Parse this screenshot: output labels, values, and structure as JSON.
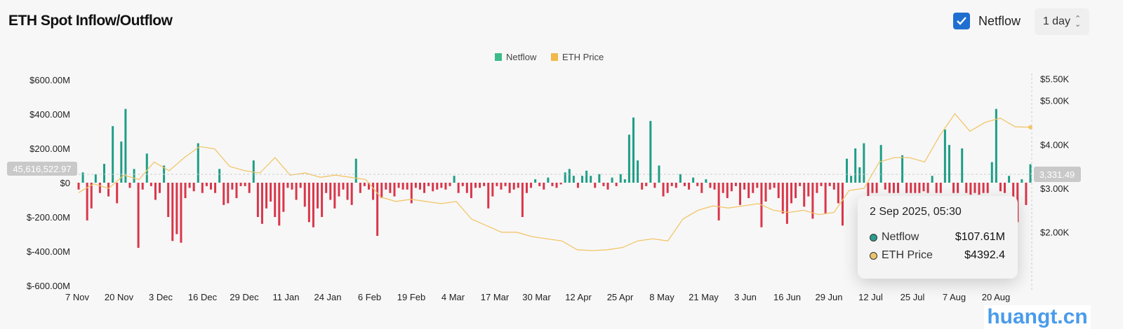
{
  "header": {
    "title": "ETH Spot Inflow/Outflow",
    "netflow_toggle_label": "Netflow",
    "netflow_checked": true,
    "interval": "1 day"
  },
  "crosshair": {
    "left_label": "45,616,522.97",
    "right_label": "3,331.49"
  },
  "tooltip": {
    "date": "2 Sep 2025, 05:30",
    "rows": [
      {
        "label": "Netflow",
        "value": "$107.61M",
        "color": "#2a9d8f"
      },
      {
        "label": "ETH Price",
        "value": "$4392.4",
        "color": "#e9c46a"
      }
    ]
  },
  "watermark": "huangt.cn",
  "chart_data": {
    "type": "bar",
    "title": "ETH Spot Inflow/Outflow",
    "legend": [
      {
        "name": "Netflow",
        "color": "#3dbb8a"
      },
      {
        "name": "ETH Price",
        "color": "#f0b94a"
      }
    ],
    "legend_position": "top-center",
    "colors": {
      "positive": "#1e9e86",
      "negative": "#d9364a",
      "price": "#f2c66a"
    },
    "y_left": {
      "ticks": [
        "$600.00M",
        "$400.00M",
        "$200.00M",
        "$0",
        "$-200.00M",
        "$-400.00M",
        "$-600.00M"
      ],
      "tick_values": [
        600,
        400,
        200,
        0,
        -200,
        -400,
        -600
      ],
      "range": [
        -600,
        600
      ],
      "unit": "M USD"
    },
    "y_right": {
      "ticks": [
        "$5.50K",
        "$5.00K",
        "$4.00K",
        "$3.00K",
        "$2.00K"
      ],
      "tick_values": [
        5500,
        5000,
        4000,
        3000,
        2000
      ],
      "unit": "USD"
    },
    "x_labels": [
      "7 Nov",
      "20 Nov",
      "3 Dec",
      "16 Dec",
      "29 Dec",
      "11 Jan",
      "24 Jan",
      "6 Feb",
      "19 Feb",
      "4 Mar",
      "17 Mar",
      "30 Mar",
      "12 Apr",
      "25 Apr",
      "8 May",
      "21 May",
      "3 Jun",
      "16 Jun",
      "29 Jun",
      "12 Jul",
      "25 Jul",
      "7 Aug",
      "20 Aug"
    ],
    "netflow_musd": [
      -40,
      60,
      -220,
      -150,
      50,
      -60,
      110,
      -80,
      330,
      -120,
      240,
      430,
      -30,
      80,
      -380,
      -40,
      170,
      -20,
      -100,
      -60,
      100,
      -200,
      -340,
      -300,
      -350,
      -90,
      -30,
      -50,
      230,
      -60,
      -20,
      -40,
      -60,
      80,
      -130,
      -120,
      -40,
      -90,
      -20,
      -20,
      -60,
      130,
      -200,
      -240,
      -150,
      -110,
      -200,
      -250,
      -170,
      -30,
      -40,
      -100,
      -30,
      -140,
      -230,
      -260,
      -150,
      -200,
      -60,
      -100,
      -150,
      -80,
      -40,
      -100,
      -130,
      140,
      -60,
      -20,
      -40,
      -100,
      -310,
      -90,
      -40,
      -60,
      -80,
      -30,
      -40,
      -40,
      -120,
      -30,
      -40,
      -60,
      -20,
      -50,
      -40,
      -30,
      -40,
      -20,
      40,
      -60,
      -20,
      -60,
      -90,
      -30,
      -30,
      -20,
      -150,
      -80,
      -20,
      -40,
      -20,
      -60,
      -40,
      -30,
      -200,
      -60,
      -30,
      20,
      -20,
      -40,
      30,
      -20,
      -30,
      -10,
      60,
      80,
      40,
      -30,
      40,
      70,
      40,
      -30,
      50,
      -20,
      -40,
      30,
      -20,
      50,
      20,
      280,
      380,
      130,
      -40,
      -20,
      360,
      -30,
      100,
      -80,
      -60,
      -20,
      -30,
      50,
      -20,
      -40,
      30,
      -20,
      -60,
      20,
      -30,
      -40,
      -220,
      -60,
      -90,
      -50,
      -20,
      -130,
      -40,
      -90,
      -60,
      -30,
      -260,
      -110,
      -40,
      -30,
      -90,
      -180,
      -240,
      -120,
      -90,
      -20,
      -140,
      -80,
      -210,
      -60,
      -20,
      -180,
      -20,
      -40,
      -120,
      -250,
      140,
      40,
      200,
      90,
      230,
      -80,
      -60,
      -60,
      220,
      -40,
      -60,
      -60,
      -60,
      160,
      -60,
      -60,
      -60,
      -60,
      -50,
      -60,
      40,
      -60,
      -60,
      310,
      220,
      -60,
      -60,
      200,
      -60,
      -70,
      -60,
      -70,
      -60,
      -60,
      120,
      430,
      -50,
      -60,
      40,
      -190,
      -230,
      20,
      -130,
      107.61
    ],
    "eth_price_usd": [
      2900,
      3100,
      3000,
      3300,
      3200,
      3600,
      3400,
      3700,
      3950,
      3900,
      3500,
      3400,
      3350,
      3700,
      3300,
      3350,
      3250,
      3300,
      3250,
      3200,
      2800,
      2700,
      2750,
      2700,
      2650,
      2700,
      2300,
      2150,
      2000,
      2000,
      1900,
      1850,
      1800,
      1600,
      1580,
      1600,
      1650,
      1800,
      1850,
      1800,
      2300,
      2500,
      2600,
      2550,
      2600,
      2650,
      2500,
      2450,
      2500,
      2400,
      2450,
      2950,
      3000,
      3600,
      3700,
      3700,
      3600,
      4200,
      4700,
      4300,
      4500,
      4600,
      4400,
      4392.4
    ]
  }
}
